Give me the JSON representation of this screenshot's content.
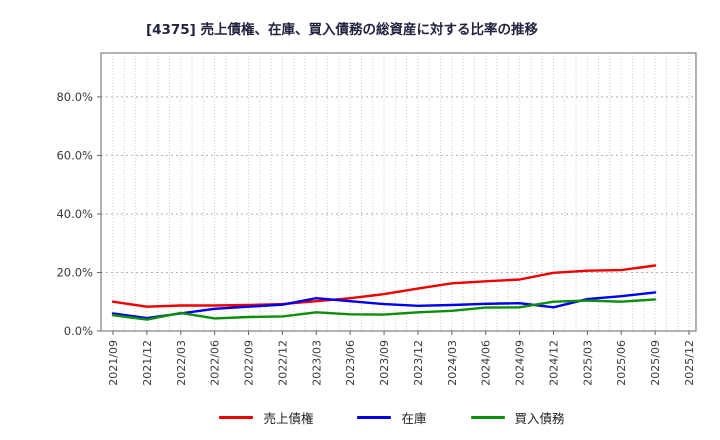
{
  "header": {
    "title": "[4375]  売上債権、在庫、買入債務の総資産に対する比率の推移"
  },
  "chart_data": {
    "type": "line",
    "title": "[4375]  売上債権、在庫、買入債務の総資産に対する比率の推移",
    "x_tick_labels": [
      "2021/09",
      "2021/12",
      "2022/03",
      "2022/06",
      "2022/09",
      "2022/12",
      "2023/03",
      "2023/06",
      "2023/09",
      "2023/12",
      "2024/03",
      "2024/06",
      "2024/09",
      "2024/12",
      "2025/03",
      "2025/06",
      "2025/09",
      "2025/12"
    ],
    "categories": [
      "2021/09",
      "2021/12",
      "2022/03",
      "2022/06",
      "2022/09",
      "2022/12",
      "2023/03",
      "2023/06",
      "2023/09",
      "2023/12",
      "2024/03",
      "2024/06",
      "2024/09",
      "2024/12",
      "2025/03",
      "2025/06",
      "2025/09"
    ],
    "series": [
      {
        "name": "売上債権",
        "key": "accounts-receivable",
        "color": "#ee0000",
        "values": [
          10.0,
          8.3,
          8.7,
          8.7,
          8.9,
          9.2,
          10.2,
          11.2,
          12.6,
          14.5,
          16.3,
          17.0,
          17.6,
          19.9,
          20.6,
          20.8,
          22.4
        ]
      },
      {
        "name": "在庫",
        "key": "inventory",
        "color": "#0000ee",
        "values": [
          6.0,
          4.4,
          6.0,
          7.6,
          8.3,
          9.0,
          11.2,
          10.2,
          9.2,
          8.6,
          8.9,
          9.3,
          9.5,
          8.1,
          10.9,
          11.9,
          13.2
        ]
      },
      {
        "name": "買入債務",
        "key": "accounts-payable",
        "color": "#0a8f0a",
        "values": [
          5.4,
          3.9,
          6.2,
          4.3,
          4.8,
          5.0,
          6.4,
          5.7,
          5.6,
          6.4,
          6.9,
          8.0,
          8.1,
          10.0,
          10.4,
          10.0,
          10.8
        ]
      }
    ],
    "xlabel": "",
    "ylabel": "",
    "ylim": [
      0,
      95
    ],
    "yticks": [
      0,
      20,
      40,
      60,
      80
    ],
    "ytick_labels": [
      "0.0%",
      "20.0%",
      "40.0%",
      "60.0%",
      "80.0%"
    ],
    "grid": true,
    "minor_x_divisions_per_interval": 3,
    "legend_position": "bottom-center"
  }
}
